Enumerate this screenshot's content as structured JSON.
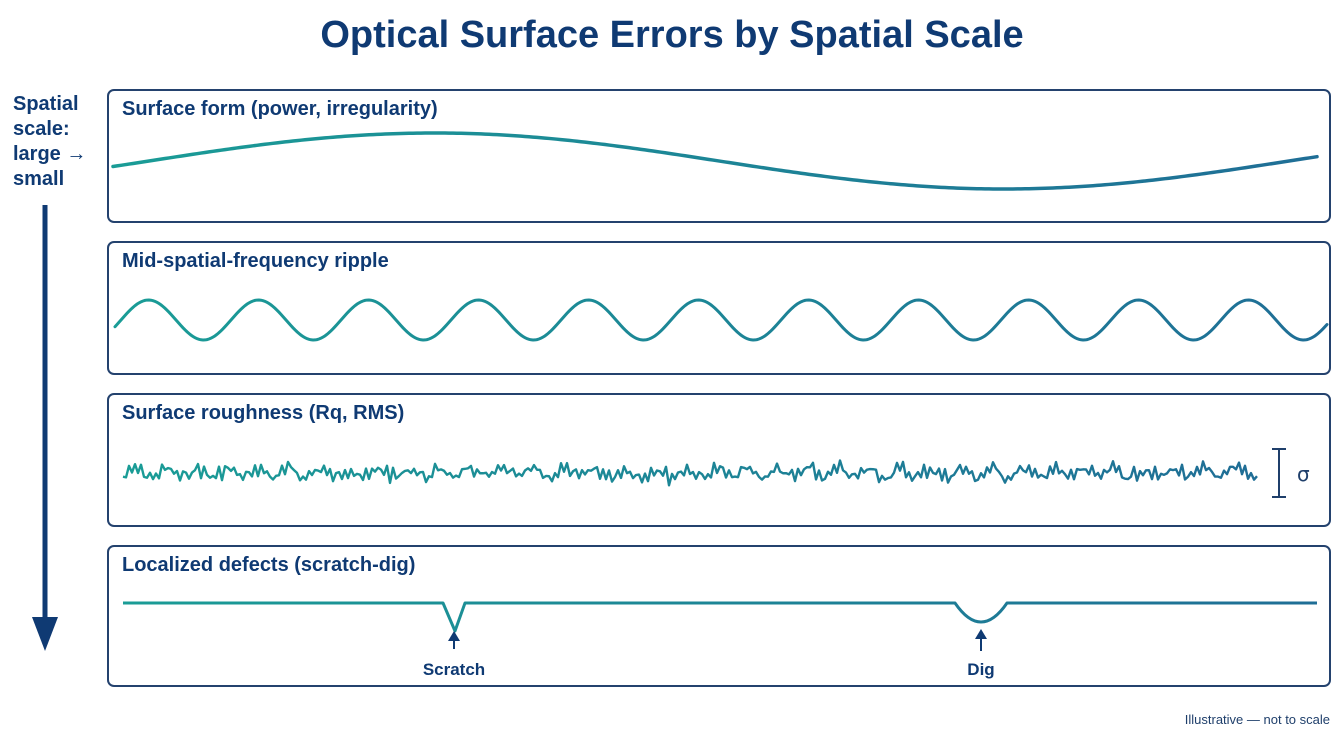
{
  "title": "Optical Surface Errors by Spatial Scale",
  "axis": {
    "label": "Spatial scale: large → small",
    "arrow_icon": "down-arrow-icon",
    "color": "#0f3a73"
  },
  "colors": {
    "curve_left": "#1a9c96",
    "curve_right": "#1f6e96",
    "border": "#24426e",
    "text": "#0f3a73"
  },
  "panels": [
    {
      "title": "Surface form (power, irregularity)"
    },
    {
      "title": "Mid-spatial-frequency ripple"
    },
    {
      "title": "Surface roughness (Rq, RMS)",
      "marker": "σ"
    },
    {
      "title": "Localized defects (scratch-dig)",
      "callouts": [
        "Scratch",
        "Dig"
      ]
    }
  ],
  "footnote": "Illustrative — not to scale"
}
